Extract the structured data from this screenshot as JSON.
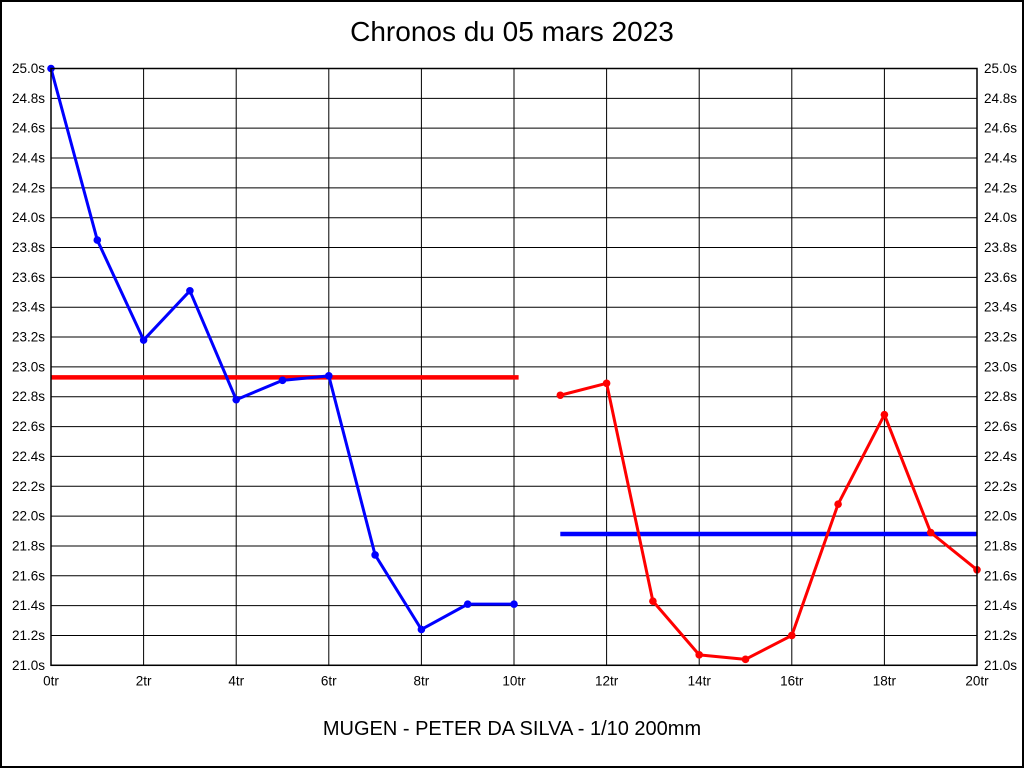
{
  "window": {
    "background": "#ffffff",
    "border_color": "#000000",
    "text_color": "#000000"
  },
  "chart_data": {
    "type": "line",
    "title": "Chronos du 05 mars 2023",
    "subtitle": "MUGEN - PETER DA SILVA - 1/10 200mm",
    "xlabel": "",
    "ylabel": "",
    "x_unit": "tr",
    "y_unit": "s",
    "xlim": [
      0,
      20
    ],
    "ylim": [
      21.0,
      25.0
    ],
    "x_tick_step": 2,
    "y_tick_step": 0.2,
    "grid": true,
    "legend": "none",
    "y_axis_sides": [
      "left",
      "right"
    ],
    "x_tick_labels": [
      "0tr",
      "2tr",
      "4tr",
      "6tr",
      "8tr",
      "10tr",
      "12tr",
      "14tr",
      "16tr",
      "18tr",
      "20tr"
    ],
    "y_tick_labels": [
      "25.0s",
      "24.8s",
      "24.6s",
      "24.4s",
      "24.2s",
      "24.0s",
      "23.8s",
      "23.6s",
      "23.4s",
      "23.2s",
      "23.0s",
      "22.8s",
      "22.6s",
      "22.4s",
      "22.2s",
      "22.0s",
      "21.8s",
      "21.6s",
      "21.4s",
      "21.2s",
      "21.0s"
    ],
    "series": [
      {
        "name": "run-1-blue",
        "color": "#0000ff",
        "x": [
          0,
          1,
          2,
          3,
          4,
          5,
          6,
          7,
          8,
          9,
          10
        ],
        "values": [
          25.0,
          23.85,
          23.18,
          23.51,
          22.78,
          22.91,
          22.94,
          21.74,
          21.24,
          21.41,
          21.41
        ]
      },
      {
        "name": "run-2-red",
        "color": "#ff0000",
        "x": [
          11,
          12,
          13,
          14,
          15,
          16,
          17,
          18,
          19,
          20
        ],
        "values": [
          22.81,
          22.89,
          21.43,
          21.07,
          21.04,
          21.2,
          22.08,
          22.68,
          21.89,
          21.64
        ]
      }
    ],
    "reference_lines": [
      {
        "name": "average-line-red",
        "color": "#ff0000",
        "value": 22.93,
        "x_start": 0,
        "x_end": 10.1
      },
      {
        "name": "average-line-blue",
        "color": "#0000ff",
        "value": 21.88,
        "x_start": 11,
        "x_end": 20
      }
    ]
  }
}
